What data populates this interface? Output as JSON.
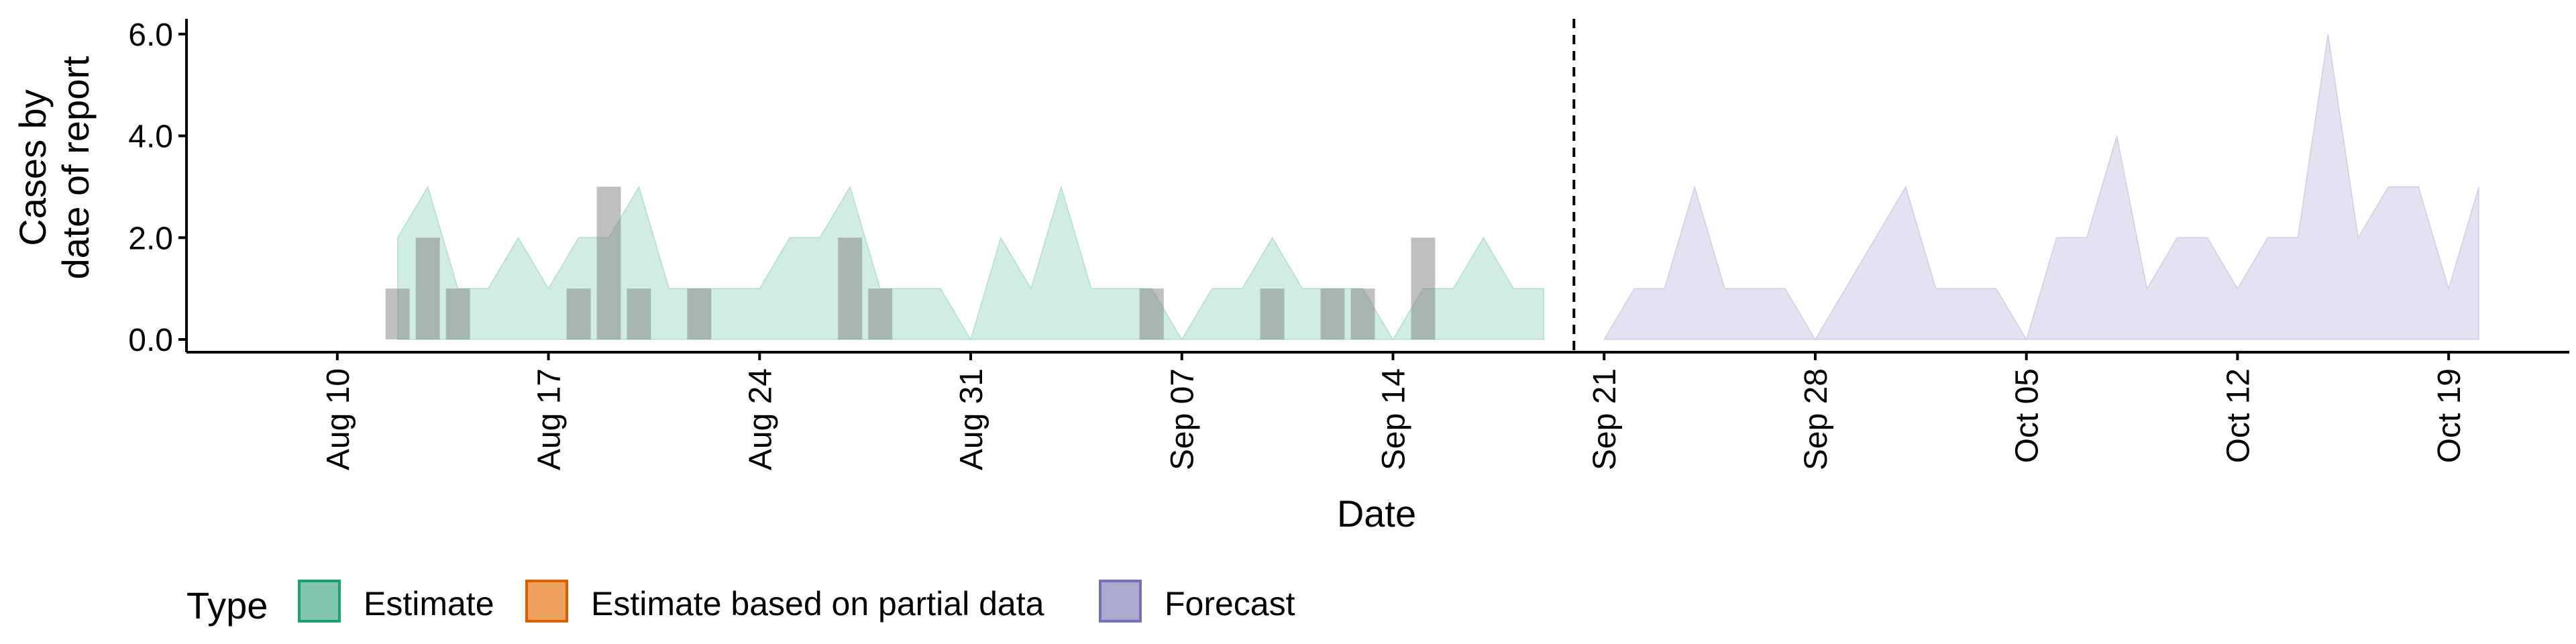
{
  "chart_data": {
    "type": "area",
    "xlabel": "Date",
    "ylabel": [
      "Cases by",
      "date of report"
    ],
    "ylim": [
      -0.25,
      6.3
    ],
    "yticks": [
      0,
      2,
      4,
      6
    ],
    "ytick_labels": [
      "0.0",
      "2.0",
      "4.0",
      "6.0"
    ],
    "xlim": [
      "2020-08-05",
      "2020-10-23"
    ],
    "xticks": [
      "2020-08-10",
      "2020-08-17",
      "2020-08-24",
      "2020-08-31",
      "2020-09-07",
      "2020-09-14",
      "2020-09-21",
      "2020-09-28",
      "2020-10-05",
      "2020-10-12",
      "2020-10-19"
    ],
    "xtick_labels": [
      "Aug 10",
      "Aug 17",
      "Aug 24",
      "Aug 31",
      "Sep 07",
      "Sep 14",
      "Sep 21",
      "Sep 28",
      "Oct 05",
      "Oct 12",
      "Oct 19"
    ],
    "vline_date": "2020-09-20",
    "observed_bars": [
      {
        "date": "2020-08-12",
        "value": 1
      },
      {
        "date": "2020-08-13",
        "value": 2
      },
      {
        "date": "2020-08-14",
        "value": 1
      },
      {
        "date": "2020-08-18",
        "value": 1
      },
      {
        "date": "2020-08-19",
        "value": 3
      },
      {
        "date": "2020-08-20",
        "value": 1
      },
      {
        "date": "2020-08-22",
        "value": 1
      },
      {
        "date": "2020-08-27",
        "value": 2
      },
      {
        "date": "2020-08-28",
        "value": 1
      },
      {
        "date": "2020-09-06",
        "value": 1
      },
      {
        "date": "2020-09-10",
        "value": 1
      },
      {
        "date": "2020-09-12",
        "value": 1
      },
      {
        "date": "2020-09-13",
        "value": 1
      },
      {
        "date": "2020-09-15",
        "value": 2
      }
    ],
    "series": [
      {
        "name": "Estimate",
        "color": "#1b9e77",
        "points": [
          {
            "date": "2020-08-12",
            "value": 2
          },
          {
            "date": "2020-08-13",
            "value": 3
          },
          {
            "date": "2020-08-14",
            "value": 1
          },
          {
            "date": "2020-08-15",
            "value": 1
          },
          {
            "date": "2020-08-16",
            "value": 2
          },
          {
            "date": "2020-08-17",
            "value": 1
          },
          {
            "date": "2020-08-18",
            "value": 2
          },
          {
            "date": "2020-08-19",
            "value": 2
          },
          {
            "date": "2020-08-20",
            "value": 3
          },
          {
            "date": "2020-08-21",
            "value": 1
          },
          {
            "date": "2020-08-22",
            "value": 1
          },
          {
            "date": "2020-08-23",
            "value": 1
          },
          {
            "date": "2020-08-24",
            "value": 1
          },
          {
            "date": "2020-08-25",
            "value": 2
          },
          {
            "date": "2020-08-26",
            "value": 2
          },
          {
            "date": "2020-08-27",
            "value": 3
          },
          {
            "date": "2020-08-28",
            "value": 1
          },
          {
            "date": "2020-08-29",
            "value": 1
          },
          {
            "date": "2020-08-30",
            "value": 1
          },
          {
            "date": "2020-08-31",
            "value": 0
          },
          {
            "date": "2020-09-01",
            "value": 2
          },
          {
            "date": "2020-09-02",
            "value": 1
          },
          {
            "date": "2020-09-03",
            "value": 3
          },
          {
            "date": "2020-09-04",
            "value": 1
          },
          {
            "date": "2020-09-05",
            "value": 1
          },
          {
            "date": "2020-09-06",
            "value": 1
          },
          {
            "date": "2020-09-07",
            "value": 0
          },
          {
            "date": "2020-09-08",
            "value": 1
          },
          {
            "date": "2020-09-09",
            "value": 1
          },
          {
            "date": "2020-09-10",
            "value": 2
          },
          {
            "date": "2020-09-11",
            "value": 1
          },
          {
            "date": "2020-09-12",
            "value": 1
          },
          {
            "date": "2020-09-13",
            "value": 1
          },
          {
            "date": "2020-09-14",
            "value": 0
          },
          {
            "date": "2020-09-15",
            "value": 1
          },
          {
            "date": "2020-09-16",
            "value": 1
          },
          {
            "date": "2020-09-17",
            "value": 2
          },
          {
            "date": "2020-09-18",
            "value": 1
          },
          {
            "date": "2020-09-19",
            "value": 1
          }
        ]
      },
      {
        "name": "Estimate based on partial data",
        "color": "#d95f02",
        "points": []
      },
      {
        "name": "Forecast",
        "color": "#7570b3",
        "points": [
          {
            "date": "2020-09-21",
            "value": 0
          },
          {
            "date": "2020-09-22",
            "value": 1
          },
          {
            "date": "2020-09-23",
            "value": 1
          },
          {
            "date": "2020-09-24",
            "value": 3
          },
          {
            "date": "2020-09-25",
            "value": 1
          },
          {
            "date": "2020-09-26",
            "value": 1
          },
          {
            "date": "2020-09-27",
            "value": 1
          },
          {
            "date": "2020-09-28",
            "value": 0
          },
          {
            "date": "2020-09-29",
            "value": 1
          },
          {
            "date": "2020-09-30",
            "value": 2
          },
          {
            "date": "2020-10-01",
            "value": 3
          },
          {
            "date": "2020-10-02",
            "value": 1
          },
          {
            "date": "2020-10-03",
            "value": 1
          },
          {
            "date": "2020-10-04",
            "value": 1
          },
          {
            "date": "2020-10-05",
            "value": 0
          },
          {
            "date": "2020-10-06",
            "value": 2
          },
          {
            "date": "2020-10-07",
            "value": 2
          },
          {
            "date": "2020-10-08",
            "value": 4
          },
          {
            "date": "2020-10-09",
            "value": 1
          },
          {
            "date": "2020-10-10",
            "value": 2
          },
          {
            "date": "2020-10-11",
            "value": 2
          },
          {
            "date": "2020-10-12",
            "value": 1
          },
          {
            "date": "2020-10-13",
            "value": 2
          },
          {
            "date": "2020-10-14",
            "value": 2
          },
          {
            "date": "2020-10-15",
            "value": 6
          },
          {
            "date": "2020-10-16",
            "value": 2
          },
          {
            "date": "2020-10-17",
            "value": 3
          },
          {
            "date": "2020-10-18",
            "value": 3
          },
          {
            "date": "2020-10-19",
            "value": 1
          },
          {
            "date": "2020-10-20",
            "value": 3
          }
        ]
      }
    ],
    "legend": {
      "title": "Type",
      "position": "bottom",
      "items": [
        {
          "label": "Estimate",
          "fill": "#7fc6ad",
          "stroke": "#1b9e77"
        },
        {
          "label": "Estimate based on partial data",
          "fill": "#eda15d",
          "stroke": "#d95f02"
        },
        {
          "label": "Forecast",
          "fill": "#acaad3",
          "stroke": "#7570b3"
        }
      ]
    },
    "grid": false
  }
}
